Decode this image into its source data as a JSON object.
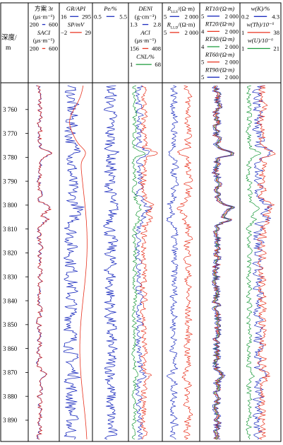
{
  "chart_data": {
    "type": "line",
    "title": "",
    "orientation": "vertical-depth",
    "depth_axis": {
      "label_line1": "深度/",
      "label_line2": "m",
      "range": [
        3750,
        3898
      ],
      "ticks": [
        3760,
        3770,
        3780,
        3790,
        3800,
        3810,
        3820,
        3830,
        3840,
        3850,
        3860,
        3870,
        3880,
        3890
      ],
      "tick_labels": [
        "3 760",
        "3 770",
        "3 780",
        "3 790",
        "3 800",
        "3 810",
        "3 820",
        "3 830",
        "3 840",
        "3 850",
        "3 860",
        "3 870",
        "3 880",
        "3 890"
      ]
    },
    "tracks": [
      {
        "id": "acoustic",
        "header_lines": [
          {
            "text": "方案 3",
            "italic": false,
            "suffix": "t",
            "suffix_italic": true
          },
          {
            "text": "(μs·m⁻¹)",
            "italic": false
          },
          {
            "scale": true,
            "min": "200",
            "max": "600",
            "color": "#1f2fbf"
          },
          {
            "text": "SACI",
            "italic": true
          },
          {
            "text": "(μs·m⁻¹)",
            "italic": false
          },
          {
            "scale": true,
            "min": "200",
            "max": "600",
            "color": "#e8321e"
          }
        ],
        "series": [
          {
            "name": "方案 3t",
            "color": "#1f2fbf",
            "min": 200,
            "max": 600
          },
          {
            "name": "SACI",
            "color": "#e8321e",
            "min": 200,
            "max": 600
          }
        ]
      },
      {
        "id": "gr_sp",
        "header_lines": [
          {
            "text": "GR/API",
            "italic": true
          },
          {
            "scale": true,
            "min": "16",
            "max": "295",
            "color": "#1f2fbf"
          },
          {
            "text": "SP/mV",
            "italic": true
          },
          {
            "scale": true,
            "min": "−2",
            "max": "29",
            "color": "#e8321e"
          }
        ],
        "series": [
          {
            "name": "GR",
            "color": "#1f2fbf",
            "min": 16,
            "max": 295
          },
          {
            "name": "SP",
            "color": "#e8321e",
            "min": -2,
            "max": 29
          }
        ]
      },
      {
        "id": "pe",
        "header_lines": [
          {
            "text": "Pe/%",
            "italic": true
          },
          {
            "scale": true,
            "min": "0.5",
            "max": "5.5",
            "color": "#1f2fbf"
          }
        ],
        "series": [
          {
            "name": "Pe",
            "color": "#1f2fbf",
            "min": 0.5,
            "max": 5.5
          }
        ]
      },
      {
        "id": "porosity",
        "header_lines": [
          {
            "text": "DENl",
            "italic": true
          },
          {
            "text": "(g·cm⁻³)",
            "italic": false
          },
          {
            "scale": true,
            "min": "1.3",
            "max": "2.8",
            "color": "#1f2fbf"
          },
          {
            "text": "ACl",
            "italic": true
          },
          {
            "text": "(μs·m⁻¹)",
            "italic": false
          },
          {
            "scale": true,
            "min": "156",
            "max": "408",
            "color": "#e8321e"
          },
          {
            "text": "CNL/%",
            "italic": true
          },
          {
            "scale": true,
            "min": "1",
            "max": "68",
            "color": "#1a9a3a"
          }
        ],
        "series": [
          {
            "name": "DENl",
            "color": "#1f2fbf",
            "min": 1.3,
            "max": 2.8
          },
          {
            "name": "ACl",
            "color": "#e8321e",
            "min": 156,
            "max": 408
          },
          {
            "name": "CNL",
            "color": "#1a9a3a",
            "min": 1,
            "max": 68
          }
        ]
      },
      {
        "id": "resistivity_lateral",
        "header_lines": [
          {
            "text": "R",
            "italic": true,
            "sub": "LLS",
            "rest": "/(Ω·m)"
          },
          {
            "scale": true,
            "min": "5",
            "max": "2 000",
            "color": "#1f2fbf"
          },
          {
            "text": "R",
            "italic": true,
            "sub": "LLD",
            "rest": "/(Ω·m)"
          },
          {
            "scale": true,
            "min": "5",
            "max": "2 000",
            "color": "#e8321e"
          }
        ],
        "series": [
          {
            "name": "RLLS",
            "color": "#1f2fbf",
            "min": 5,
            "max": 2000
          },
          {
            "name": "RLLD",
            "color": "#e8321e",
            "min": 5,
            "max": 2000
          }
        ]
      },
      {
        "id": "resistivity_array",
        "header_lines": [
          {
            "text": "RT10/(Ω·m)",
            "italic": true
          },
          {
            "scale": true,
            "min": "5",
            "max": "2 000",
            "color": "#1f2fbf"
          },
          {
            "text": "RT20/(Ω·m)",
            "italic": true
          },
          {
            "scale": true,
            "min": "4",
            "max": "2 000",
            "color": "#e8321e"
          },
          {
            "text": "RT30/(Ω·m)",
            "italic": true
          },
          {
            "scale": true,
            "min": "4",
            "max": "2 000",
            "color": "#1a9a3a"
          },
          {
            "text": "RT60/(Ω·m)",
            "italic": true
          },
          {
            "scale": true,
            "min": "5",
            "max": "2 000",
            "color": "#e8321e"
          },
          {
            "text": "RT90/(Ω·m)",
            "italic": true
          },
          {
            "scale": true,
            "min": "5",
            "max": "2 000",
            "color": "#1f2fbf"
          }
        ],
        "series": [
          {
            "name": "RT10",
            "color": "#1f2fbf",
            "min": 5,
            "max": 2000
          },
          {
            "name": "RT20",
            "color": "#e8321e",
            "min": 4,
            "max": 2000
          },
          {
            "name": "RT30",
            "color": "#1a9a3a",
            "min": 4,
            "max": 2000
          },
          {
            "name": "RT60",
            "color": "#e8321e",
            "min": 5,
            "max": 2000
          },
          {
            "name": "RT90",
            "color": "#1f2fbf",
            "min": 5,
            "max": 2000
          }
        ]
      },
      {
        "id": "spectral_gamma",
        "header_lines": [
          {
            "text": "w(K)/%",
            "italic": true
          },
          {
            "scale": true,
            "min": "0.2",
            "max": "4.3",
            "color": "#1f2fbf"
          },
          {
            "text": "w(Th)/10⁻⁶",
            "italic": true
          },
          {
            "scale": true,
            "min": "1",
            "max": "38",
            "color": "#e8321e"
          },
          {
            "text": "w(U)/10⁻⁶",
            "italic": true
          },
          {
            "scale": true,
            "min": "1",
            "max": "21",
            "color": "#1a9a3a"
          }
        ],
        "series": [
          {
            "name": "w(K)",
            "color": "#1f2fbf",
            "min": 0.2,
            "max": 4.3
          },
          {
            "name": "w(Th)",
            "color": "#e8321e",
            "min": 1,
            "max": 38
          },
          {
            "name": "w(U)",
            "color": "#1a9a3a",
            "min": 1,
            "max": 21
          }
        ]
      }
    ]
  }
}
